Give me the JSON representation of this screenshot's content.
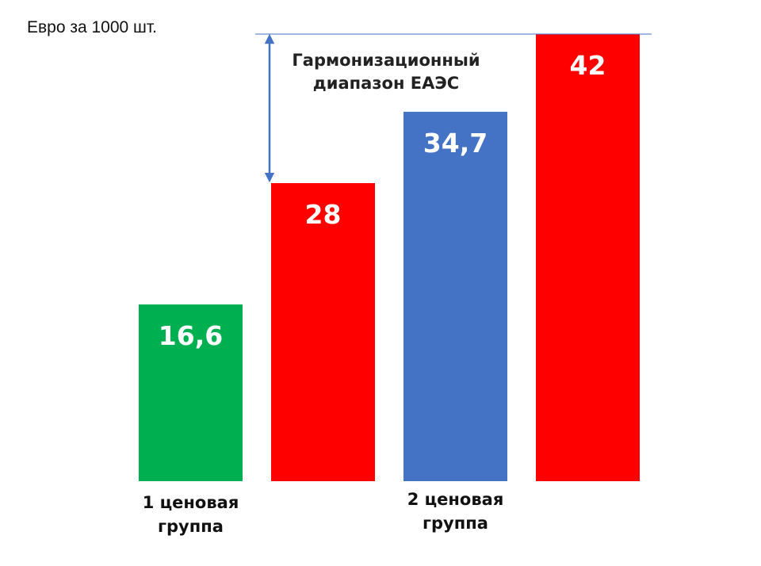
{
  "chart_data": {
    "type": "bar",
    "unit_label": "Евро за 1000 шт.",
    "bars": [
      {
        "value": 16.6,
        "label": "16,6",
        "color": "#00B050"
      },
      {
        "value": 28,
        "label": "28",
        "color": "#FF0000"
      },
      {
        "value": 34.7,
        "label": "34,7",
        "color": "#4472C4"
      },
      {
        "value": 42,
        "label": "42",
        "color": "#FF0000"
      }
    ],
    "group_labels": [
      {
        "lines": [
          "1 ценовая",
          "группа"
        ],
        "bar_index": 0
      },
      {
        "lines": [
          "2 ценовая",
          "группа"
        ],
        "bar_index": 2
      }
    ],
    "range_annotation": {
      "lines": [
        "Гармонизационный",
        "диапазон ЕАЭС"
      ],
      "from": 28,
      "to": 42,
      "line_color": "#4472C4",
      "arrow_color": "#4472C4"
    },
    "ylim": [
      0,
      42
    ],
    "grid": false,
    "legend": "none"
  }
}
